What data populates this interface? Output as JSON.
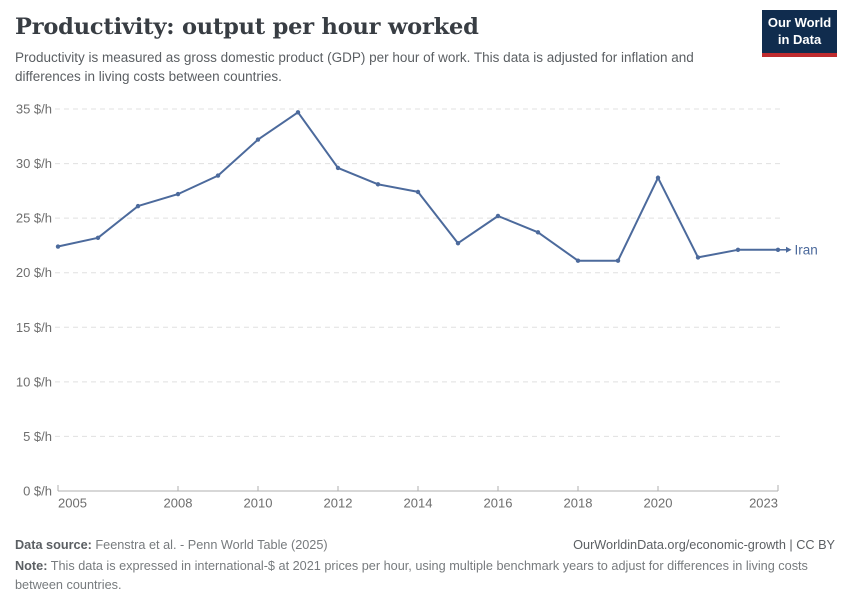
{
  "header": {
    "title": "Productivity: output per hour worked",
    "subtitle": "Productivity is measured as gross domestic product (GDP) per hour of work. This data is adjusted for inflation and differences in living costs between countries.",
    "logo": {
      "line1": "Our World",
      "line2": "in Data",
      "bg_color": "#102c4e",
      "accent_color": "#bf2b2e"
    }
  },
  "chart_data": {
    "type": "line",
    "title": "Productivity: output per hour worked",
    "x": [
      2005,
      2006,
      2007,
      2008,
      2009,
      2010,
      2011,
      2012,
      2013,
      2014,
      2015,
      2016,
      2017,
      2018,
      2019,
      2020,
      2021,
      2022,
      2023
    ],
    "series": [
      {
        "name": "Iran",
        "color": "#4c6a9c",
        "values": [
          22.4,
          23.2,
          26.1,
          27.2,
          28.9,
          32.2,
          34.7,
          29.6,
          28.1,
          27.4,
          22.7,
          25.2,
          23.7,
          21.1,
          21.1,
          28.7,
          21.4,
          22.1,
          22.1
        ]
      }
    ],
    "xlim": [
      2005,
      2023
    ],
    "ylim": [
      0,
      35
    ],
    "x_ticks": [
      2005,
      2008,
      2010,
      2012,
      2014,
      2016,
      2018,
      2020,
      2023
    ],
    "y_ticks": [
      0,
      5,
      10,
      15,
      20,
      25,
      30,
      35
    ],
    "y_tick_suffix": " $/h",
    "grid": "horizontal-dashed",
    "legend_position": "end-of-line-label",
    "end_label": "Iran",
    "colors": {
      "line": "#4c6a9c",
      "grid": "#e0e0e0",
      "axis": "#afafaf",
      "tick_label": "#6e6e6e",
      "end_label": "#4c6a9c"
    }
  },
  "footer": {
    "source_label": "Data source:",
    "source_text": "Feenstra et al. - Penn World Table (2025)",
    "link_text": "OurWorldinData.org/economic-growth | CC BY",
    "note_label": "Note:",
    "note_text": "This data is expressed in international-$ at 2021 prices per hour, using multiple benchmark years to adjust for differences in living costs between countries."
  }
}
